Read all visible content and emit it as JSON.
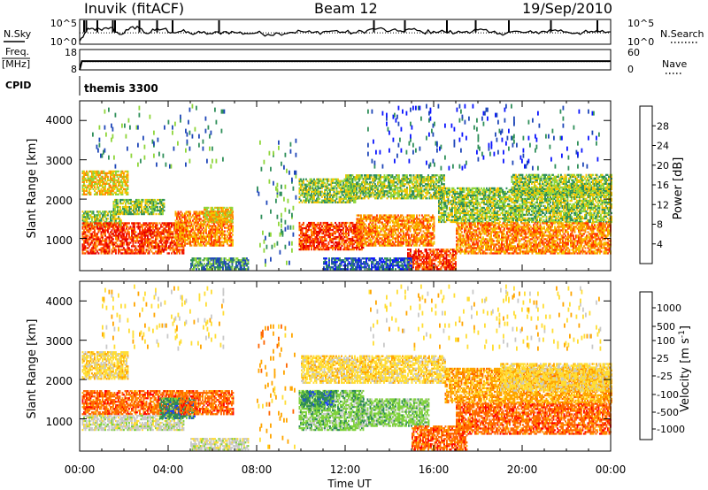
{
  "header": {
    "station_title": "Inuvik (fitACF)",
    "beam": "Beam 12",
    "date": "19/Sep/2010"
  },
  "colors": {
    "power": [
      "#0a14ff",
      "#1f47b8",
      "#2f8f5a",
      "#8fd63a",
      "#f5c400",
      "#ff8a00",
      "#ff3300",
      "#e60000"
    ],
    "velocity": [
      "#ff0000",
      "#ff6600",
      "#ffa500",
      "#ffdd33",
      "#c8c8c8",
      "#7fd23c",
      "#2e8b57",
      "#1a3cff"
    ]
  },
  "chart_data": [
    {
      "type": "line",
      "name": "noise-panel",
      "ylabel_left": "N.Sky",
      "ylabel_right": "N.Search",
      "left_ticks": [
        "10^5",
        "10^0"
      ],
      "right_ticks": [
        "10^5",
        "10^0"
      ],
      "x_hours": [
        0.0,
        0.3,
        0.6,
        1.0,
        1.4,
        1.8,
        2.2,
        2.6,
        3.0,
        3.4,
        3.8,
        4.2,
        4.6,
        5.0,
        5.5,
        6.0,
        6.5,
        7.0,
        7.5,
        8.0,
        8.5,
        9.0,
        9.5,
        10.0,
        10.5,
        11.0,
        11.5,
        12.0,
        12.5,
        13.0,
        13.5,
        14.0,
        14.5,
        15.0,
        15.5,
        16.0,
        16.5,
        17.0,
        17.5,
        18.0,
        18.5,
        19.0,
        19.5,
        20.0,
        20.5,
        21.0,
        21.5,
        22.0,
        22.5,
        23.0,
        23.5,
        24.0
      ],
      "y_log10": [
        0.6,
        2.6,
        3.2,
        2.8,
        3.4,
        2.0,
        2.9,
        3.6,
        2.2,
        2.8,
        3.1,
        2.4,
        2.6,
        2.2,
        2.3,
        2.1,
        2.5,
        2.4,
        2.2,
        2.3,
        2.0,
        2.2,
        2.4,
        2.6,
        2.3,
        2.5,
        2.7,
        2.4,
        2.3,
        2.8,
        3.2,
        2.6,
        2.7,
        3.0,
        2.4,
        2.6,
        2.5,
        2.3,
        2.6,
        2.9,
        2.4,
        2.2,
        2.5,
        2.4,
        2.3,
        2.6,
        2.9,
        2.5,
        2.3,
        2.4,
        2.5,
        2.5
      ],
      "spike_hours": [
        0.2,
        0.3,
        0.8,
        1.5,
        1.6,
        2.7,
        3.5,
        4.2,
        6.3,
        13.3,
        14.7,
        16.6,
        17.9,
        19.4,
        21.3,
        23.4
      ],
      "ylim_log10": [
        0,
        5
      ]
    },
    {
      "type": "line",
      "name": "frequency-panel",
      "ylabel_left": "Freq.",
      "ylabel_left_unit": "[MHz]",
      "ylabel_right": "Nave",
      "left_ticks": [
        "18",
        "8"
      ],
      "right_ticks": [
        "60",
        "0"
      ],
      "ylim": [
        8,
        18
      ],
      "x_hours": [
        0.0,
        0.1,
        24.0
      ],
      "y_mhz": [
        8,
        12.3,
        12.3
      ]
    },
    {
      "type": "table",
      "name": "cpid-panel",
      "label": "CPID",
      "value": "themis 3300"
    },
    {
      "type": "heatmap",
      "name": "power-panel",
      "ylabel": "Slant Range [km]",
      "yticks": [
        "1000",
        "2000",
        "3000",
        "4000"
      ],
      "colorbar_label": "Power [dB]",
      "colorbar_ticks": [
        "4",
        "8",
        "12",
        "16",
        "20",
        "24",
        "28"
      ],
      "xlim_hours": [
        0,
        24
      ],
      "ylim_km": [
        180,
        4500
      ],
      "blobs": [
        {
          "t0": 0.1,
          "t1": 2.2,
          "r0": 2100,
          "r1": 2700,
          "v": 17
        },
        {
          "t0": 0.1,
          "t1": 1.9,
          "r0": 1300,
          "r1": 1700,
          "v": 12
        },
        {
          "t0": 0.1,
          "t1": 4.7,
          "r0": 600,
          "r1": 1400,
          "v": 27
        },
        {
          "t0": 1.5,
          "t1": 3.8,
          "r0": 1600,
          "r1": 2000,
          "v": 14
        },
        {
          "t0": 4.3,
          "t1": 6.9,
          "r0": 800,
          "r1": 1700,
          "v": 22
        },
        {
          "t0": 5.6,
          "t1": 6.9,
          "r0": 1400,
          "r1": 1800,
          "v": 18
        },
        {
          "t0": 5.0,
          "t1": 7.6,
          "r0": 200,
          "r1": 500,
          "v": 9
        },
        {
          "t0": 9.9,
          "t1": 12.8,
          "r0": 700,
          "r1": 1400,
          "v": 27
        },
        {
          "t0": 9.9,
          "t1": 12.5,
          "r0": 1900,
          "r1": 2500,
          "v": 14
        },
        {
          "t0": 12.5,
          "t1": 16.0,
          "r0": 800,
          "r1": 1600,
          "v": 22
        },
        {
          "t0": 12.0,
          "t1": 16.5,
          "r0": 2000,
          "r1": 2600,
          "v": 15
        },
        {
          "t0": 14.8,
          "t1": 17.0,
          "r0": 200,
          "r1": 700,
          "v": 24
        },
        {
          "t0": 16.2,
          "t1": 24.0,
          "r0": 1400,
          "r1": 2300,
          "v": 13
        },
        {
          "t0": 17.0,
          "t1": 24.0,
          "r0": 600,
          "r1": 1400,
          "v": 20
        },
        {
          "t0": 19.5,
          "t1": 24.0,
          "r0": 2100,
          "r1": 2600,
          "v": 12
        },
        {
          "t0": 11.0,
          "t1": 15.0,
          "r0": 200,
          "r1": 500,
          "v": 6
        },
        {
          "t0": 0.5,
          "t1": 6.5,
          "r0": 2800,
          "r1": 4400,
          "v": 8,
          "sparse": true
        },
        {
          "t0": 8.0,
          "t1": 9.8,
          "r0": 300,
          "r1": 3500,
          "v": 10,
          "sparse": true
        },
        {
          "t0": 13.0,
          "t1": 23.5,
          "r0": 2800,
          "r1": 4400,
          "v": 6,
          "sparse": true
        }
      ]
    },
    {
      "type": "heatmap",
      "name": "velocity-panel",
      "ylabel": "Slant Range [km]",
      "yticks": [
        "1000",
        "2000",
        "3000",
        "4000"
      ],
      "xlabel": "Time UT",
      "xticks": [
        "00:00",
        "04:00",
        "08:00",
        "12:00",
        "16:00",
        "20:00",
        "00:00"
      ],
      "colorbar_label": "Velocity [m s",
      "colorbar_label_sup": "-1",
      "colorbar_label_end": "]",
      "colorbar_ticks": [
        "1000",
        "500",
        "100",
        "25",
        "-25",
        "-100",
        "-500",
        "-1000"
      ],
      "xlim_hours": [
        0,
        24
      ],
      "ylim_km": [
        180,
        4500
      ],
      "blobs": [
        {
          "t0": 0.1,
          "t1": 2.2,
          "r0": 2000,
          "r1": 2700,
          "v": 0
        },
        {
          "t0": 0.1,
          "t1": 4.7,
          "r0": 1100,
          "r1": 1700,
          "v": -300
        },
        {
          "t0": 0.1,
          "t1": 4.7,
          "r0": 700,
          "r1": 1100,
          "v": 60
        },
        {
          "t0": 3.6,
          "t1": 5.2,
          "r0": 1000,
          "r1": 1500,
          "v": 700
        },
        {
          "t0": 4.5,
          "t1": 6.9,
          "r0": 1100,
          "r1": 1700,
          "v": -200
        },
        {
          "t0": 5.0,
          "t1": 7.6,
          "r0": 200,
          "r1": 500,
          "v": 60
        },
        {
          "t0": 9.9,
          "t1": 12.8,
          "r0": 700,
          "r1": 1700,
          "v": 300
        },
        {
          "t0": 12.5,
          "t1": 15.8,
          "r0": 800,
          "r1": 1500,
          "v": 300
        },
        {
          "t0": 10.0,
          "t1": 11.5,
          "r0": 1300,
          "r1": 1700,
          "v": 700
        },
        {
          "t0": 10.0,
          "t1": 16.5,
          "r0": 1900,
          "r1": 2600,
          "v": 0
        },
        {
          "t0": 15.0,
          "t1": 17.5,
          "r0": 200,
          "r1": 800,
          "v": -300
        },
        {
          "t0": 17.0,
          "t1": 24.0,
          "r0": 600,
          "r1": 1400,
          "v": -300
        },
        {
          "t0": 16.5,
          "t1": 24.0,
          "r0": 1400,
          "r1": 2300,
          "v": -60
        },
        {
          "t0": 19.0,
          "t1": 24.0,
          "r0": 1700,
          "r1": 2400,
          "v": 0
        },
        {
          "t0": 1.0,
          "t1": 6.5,
          "r0": 2800,
          "r1": 4400,
          "v": 0,
          "sparse": true
        },
        {
          "t0": 8.0,
          "t1": 9.8,
          "r0": 300,
          "r1": 3500,
          "v": -60,
          "sparse": true
        },
        {
          "t0": 13.0,
          "t1": 23.5,
          "r0": 2800,
          "r1": 4400,
          "v": 0,
          "sparse": true
        }
      ]
    }
  ]
}
